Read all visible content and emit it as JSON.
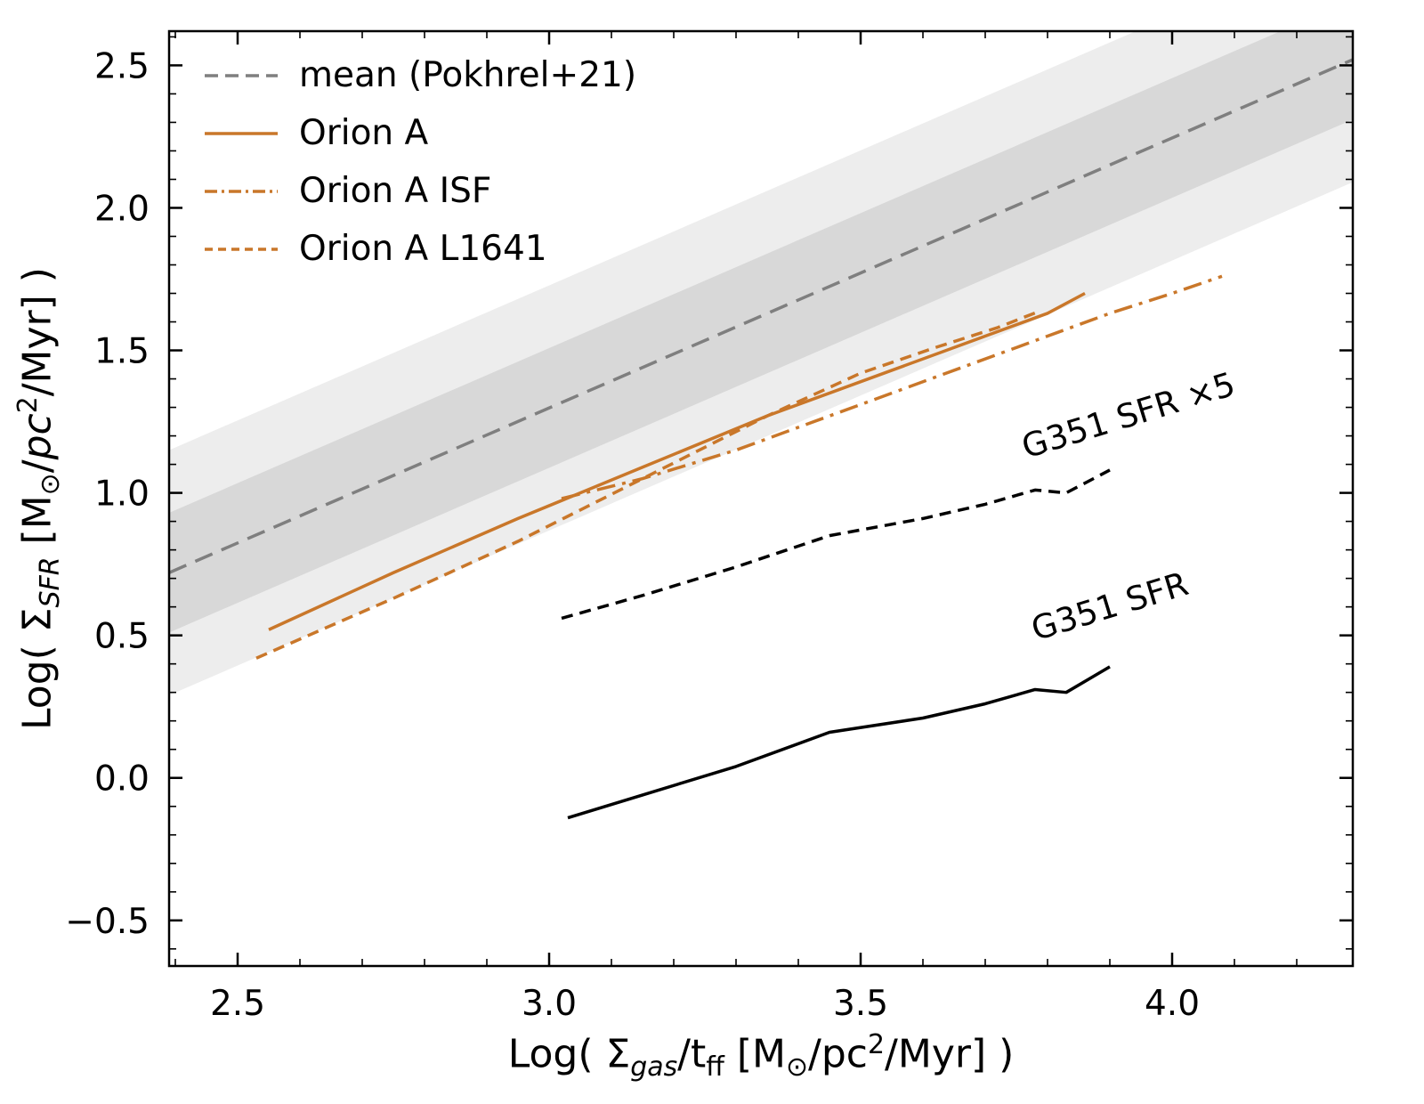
{
  "chart_data": {
    "type": "line",
    "title": "",
    "xlabel": "Log( Σ_gas/t_ff [M_⊙/pc^2/Myr] )",
    "ylabel": "Log( Σ_SFR [M_⊙/pc^2/Myr] )",
    "xlim": [
      2.39,
      4.29
    ],
    "ylim": [
      -0.66,
      2.62
    ],
    "xticks": [
      2.5,
      3.0,
      3.5,
      4.0
    ],
    "xtick_labels": [
      "2.5",
      "3.0",
      "3.5",
      "4.0"
    ],
    "yticks": [
      -0.5,
      0.0,
      0.5,
      1.0,
      1.5,
      2.0,
      2.5
    ],
    "ytick_labels": [
      "−0.5",
      "0.0",
      "0.5",
      "1.0",
      "1.5",
      "2.0",
      "2.5"
    ],
    "minor_tick_step": 0.1,
    "grid": false,
    "legend_position": "upper-left",
    "band": {
      "line": {
        "x": [
          2.39,
          4.29
        ],
        "y": [
          0.72,
          2.52
        ]
      },
      "inner_halfwidth": 0.21,
      "outer_halfwidth": 0.43,
      "inner_color": "#d8d8d8",
      "outer_color": "#ededed"
    },
    "series": [
      {
        "name": "mean (Pokhrel+21)",
        "color": "#7f7f7f",
        "style": "dashed-long",
        "in_legend": true,
        "x": [
          2.39,
          4.29
        ],
        "y": [
          0.72,
          2.52
        ]
      },
      {
        "name": "Orion A",
        "color": "#c9772a",
        "style": "solid",
        "in_legend": true,
        "x": [
          2.55,
          2.75,
          2.95,
          3.15,
          3.35,
          3.55,
          3.7,
          3.8,
          3.86
        ],
        "y": [
          0.52,
          0.72,
          0.91,
          1.09,
          1.27,
          1.43,
          1.55,
          1.63,
          1.7
        ]
      },
      {
        "name": "Orion A ISF",
        "color": "#c9772a",
        "style": "dashdot",
        "in_legend": true,
        "x": [
          3.02,
          3.15,
          3.3,
          3.45,
          3.6,
          3.75,
          3.9,
          4.0,
          4.08
        ],
        "y": [
          0.98,
          1.05,
          1.15,
          1.27,
          1.39,
          1.51,
          1.63,
          1.7,
          1.76
        ]
      },
      {
        "name": "Orion A L1641",
        "color": "#c9772a",
        "style": "dashed",
        "in_legend": true,
        "x": [
          2.53,
          2.75,
          2.95,
          3.15,
          3.35,
          3.5,
          3.62,
          3.72,
          3.79
        ],
        "y": [
          0.42,
          0.63,
          0.83,
          1.05,
          1.27,
          1.42,
          1.51,
          1.58,
          1.64
        ]
      },
      {
        "name": "G351 SFR ×5",
        "color": "#000000",
        "style": "dashed",
        "in_legend": false,
        "x": [
          3.02,
          3.15,
          3.3,
          3.45,
          3.6,
          3.7,
          3.78,
          3.83,
          3.9
        ],
        "y": [
          0.56,
          0.64,
          0.74,
          0.85,
          0.91,
          0.96,
          1.01,
          1.0,
          1.08
        ]
      },
      {
        "name": "G351 SFR",
        "color": "#000000",
        "style": "solid",
        "in_legend": false,
        "x": [
          3.03,
          3.15,
          3.3,
          3.45,
          3.6,
          3.7,
          3.78,
          3.83,
          3.9
        ],
        "y": [
          -0.14,
          -0.06,
          0.04,
          0.16,
          0.21,
          0.26,
          0.31,
          0.3,
          0.39
        ]
      }
    ],
    "annotations": [
      {
        "text": "G351 SFR ×5",
        "x": 3.93,
        "y": 1.27,
        "rotation": -17
      },
      {
        "text": "G351 SFR",
        "x": 3.9,
        "y": 0.6,
        "rotation": -17
      }
    ]
  },
  "axes": {
    "xlabel": {
      "p1": "Log( Σ",
      "s1": "gas",
      "p2": "/t",
      "s2": "ff",
      "p3": " [M",
      "s3": "⊙",
      "p4": "/pc",
      "sup": "2",
      "p5": "/Myr] )"
    },
    "ylabel": {
      "p1": "Log( Σ",
      "s1": "SFR",
      "p2": " [M",
      "s2": "⊙",
      "p3": "/",
      "it1": "pc",
      "sup": "2",
      "p4": "/Myr] )"
    }
  }
}
